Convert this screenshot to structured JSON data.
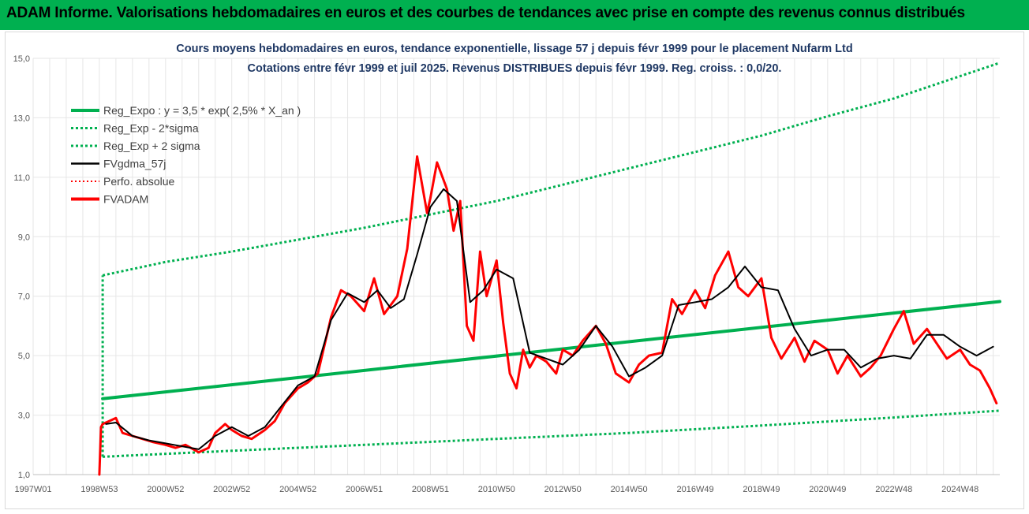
{
  "header": {
    "title": "ADAM Informe. Valorisations hebdomadaires en euros et des courbes de tendances avec prise en compte des revenus connus distribués"
  },
  "colors": {
    "header_bg": "#00b050",
    "trend_green": "#00b050",
    "smooth_black": "#000000",
    "price_red": "#ff0000",
    "grid": "#e6e6e6",
    "title_blue": "#1f3864"
  },
  "chart_data": {
    "type": "line",
    "title": "Cours moyens hebdomadaires en euros, tendance exponentielle, lissage 57 j depuis févr 1999 pour le placement Nufarm Ltd",
    "subtitle": "Cotations entre févr 1999 et juil 2025.  Revenus DISTRIBUES depuis févr 1999.  Reg. croiss. : 0,0/20.",
    "xlabel": "",
    "ylabel": "",
    "xlim": [
      1997.0,
      2026.2
    ],
    "ylim": [
      1.0,
      15.0
    ],
    "y_ticks": [
      "1,0",
      "3,0",
      "5,0",
      "7,0",
      "9,0",
      "11,0",
      "13,0",
      "15,0"
    ],
    "x_ticks": [
      {
        "label": "1997W01",
        "x": 1997.0
      },
      {
        "label": "1998W53",
        "x": 1999.0
      },
      {
        "label": "2000W52",
        "x": 2001.0
      },
      {
        "label": "2002W52",
        "x": 2003.0
      },
      {
        "label": "2004W52",
        "x": 2005.0
      },
      {
        "label": "2006W51",
        "x": 2007.0
      },
      {
        "label": "2008W51",
        "x": 2009.0
      },
      {
        "label": "2010W50",
        "x": 2011.0
      },
      {
        "label": "2012W50",
        "x": 2013.0
      },
      {
        "label": "2014W50",
        "x": 2015.0
      },
      {
        "label": "2016W49",
        "x": 2017.0
      },
      {
        "label": "2018W49",
        "x": 2019.0
      },
      {
        "label": "2020W49",
        "x": 2021.0
      },
      {
        "label": "2022W48",
        "x": 2023.0
      },
      {
        "label": "2024W48",
        "x": 2025.0
      }
    ],
    "grid": true,
    "legend_position": "top-left",
    "series": [
      {
        "name": "Reg_Expo : y = 3,5 * exp( 2,5% *  X_an )",
        "style": "solid",
        "color": "#00b050",
        "x": [
          1999.1,
          2026.2
        ],
        "y": [
          3.55,
          6.82
        ]
      },
      {
        "name": "Reg_Exp - 2*sigma",
        "style": "dotted",
        "color": "#00b050",
        "x": [
          1999.1,
          2003,
          2007,
          2011,
          2015,
          2019,
          2023,
          2026.2
        ],
        "y": [
          1.6,
          1.8,
          2.0,
          2.2,
          2.4,
          2.65,
          2.92,
          3.15
        ]
      },
      {
        "name": "Reg_Exp + 2 sigma",
        "style": "dotted",
        "color": "#00b050",
        "x": [
          1999.1,
          2001,
          2003,
          2005,
          2007,
          2009,
          2011,
          2013,
          2015,
          2017,
          2019,
          2021,
          2023,
          2025,
          2026.2
        ],
        "y": [
          7.7,
          8.15,
          8.5,
          8.9,
          9.3,
          9.75,
          10.2,
          10.75,
          11.3,
          11.85,
          12.4,
          13.05,
          13.65,
          14.4,
          14.85
        ]
      },
      {
        "name": "FVgdma_57j",
        "style": "solid",
        "color": "#000000",
        "x": [
          1999.2,
          1999.5,
          2000.0,
          2000.5,
          2001.0,
          2001.5,
          2002.0,
          2002.5,
          2003.0,
          2003.5,
          2004.0,
          2004.5,
          2005.0,
          2005.5,
          2006.0,
          2006.5,
          2007.0,
          2007.4,
          2007.8,
          2008.2,
          2008.6,
          2009.0,
          2009.4,
          2009.8,
          2010.2,
          2010.6,
          2011.0,
          2011.5,
          2012.0,
          2012.5,
          2013.0,
          2013.5,
          2014.0,
          2014.5,
          2015.0,
          2015.5,
          2016.0,
          2016.5,
          2017.0,
          2017.5,
          2018.0,
          2018.5,
          2019.0,
          2019.5,
          2020.0,
          2020.5,
          2021.0,
          2021.5,
          2022.0,
          2022.5,
          2023.0,
          2023.5,
          2024.0,
          2024.5,
          2025.0,
          2025.5,
          2026.0
        ],
        "y": [
          2.7,
          2.75,
          2.3,
          2.15,
          2.05,
          1.95,
          1.85,
          2.3,
          2.6,
          2.3,
          2.6,
          3.3,
          4.0,
          4.3,
          6.2,
          7.1,
          6.8,
          7.2,
          6.6,
          6.9,
          8.4,
          10.0,
          10.6,
          10.2,
          6.8,
          7.2,
          7.9,
          7.6,
          5.1,
          4.9,
          4.7,
          5.2,
          6.0,
          5.3,
          4.3,
          4.6,
          5.0,
          6.7,
          6.8,
          6.9,
          7.3,
          8.0,
          7.3,
          7.2,
          5.9,
          5.0,
          5.2,
          5.2,
          4.6,
          4.9,
          5.0,
          4.9,
          5.7,
          5.7,
          5.3,
          5.0,
          5.3
        ]
      },
      {
        "name": "Perfo. absolue",
        "style": "dotted",
        "color": "#ff0000",
        "x": [],
        "y": []
      },
      {
        "name": "FVADAM",
        "style": "solid",
        "color": "#ff0000",
        "x": [
          1999.0,
          1999.05,
          1999.1,
          1999.3,
          1999.5,
          1999.7,
          2000.0,
          2000.3,
          2000.6,
          2001.0,
          2001.3,
          2001.6,
          2002.0,
          2002.3,
          2002.5,
          2002.8,
          2003.0,
          2003.3,
          2003.6,
          2004.0,
          2004.3,
          2004.6,
          2005.0,
          2005.3,
          2005.6,
          2006.0,
          2006.3,
          2006.6,
          2007.0,
          2007.3,
          2007.6,
          2008.0,
          2008.3,
          2008.6,
          2008.9,
          2009.0,
          2009.2,
          2009.5,
          2009.7,
          2009.9,
          2010.1,
          2010.3,
          2010.5,
          2010.7,
          2011.0,
          2011.2,
          2011.4,
          2011.6,
          2011.8,
          2012.0,
          2012.2,
          2012.5,
          2012.8,
          2013.0,
          2013.3,
          2013.6,
          2014.0,
          2014.3,
          2014.6,
          2015.0,
          2015.3,
          2015.6,
          2016.0,
          2016.3,
          2016.6,
          2017.0,
          2017.3,
          2017.6,
          2018.0,
          2018.3,
          2018.6,
          2019.0,
          2019.3,
          2019.6,
          2020.0,
          2020.3,
          2020.6,
          2021.0,
          2021.3,
          2021.6,
          2022.0,
          2022.3,
          2022.6,
          2023.0,
          2023.3,
          2023.6,
          2024.0,
          2024.3,
          2024.6,
          2025.0,
          2025.3,
          2025.6,
          2025.9,
          2026.1
        ],
        "y": [
          1.0,
          2.6,
          2.7,
          2.8,
          2.9,
          2.4,
          2.3,
          2.2,
          2.1,
          2.0,
          1.9,
          2.0,
          1.75,
          1.9,
          2.4,
          2.7,
          2.5,
          2.3,
          2.2,
          2.5,
          2.8,
          3.4,
          3.9,
          4.1,
          4.4,
          6.3,
          7.2,
          7.0,
          6.5,
          7.6,
          6.4,
          7.0,
          8.6,
          11.7,
          9.8,
          10.3,
          11.5,
          10.6,
          9.2,
          10.2,
          6.0,
          5.5,
          8.5,
          7.0,
          8.2,
          6.1,
          4.4,
          3.9,
          5.2,
          4.6,
          5.0,
          4.8,
          4.4,
          5.2,
          5.0,
          5.5,
          6.0,
          5.4,
          4.4,
          4.1,
          4.7,
          5.0,
          5.1,
          6.9,
          6.4,
          7.2,
          6.6,
          7.7,
          8.5,
          7.3,
          7.0,
          7.6,
          5.6,
          4.9,
          5.6,
          4.8,
          5.5,
          5.2,
          4.4,
          5.0,
          4.3,
          4.6,
          5.0,
          5.9,
          6.5,
          5.4,
          5.9,
          5.4,
          4.9,
          5.2,
          4.7,
          4.5,
          3.9,
          3.4
        ]
      }
    ]
  }
}
